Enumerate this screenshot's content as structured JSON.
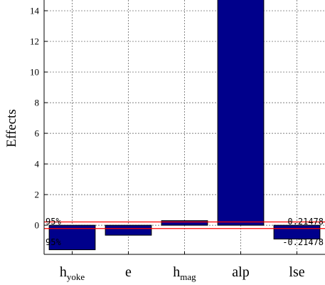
{
  "chart_data": {
    "type": "bar",
    "categories": [
      {
        "base": "h",
        "sub": "yoke"
      },
      {
        "base": "e",
        "sub": ""
      },
      {
        "base": "h",
        "sub": "mag"
      },
      {
        "base": "alp",
        "sub": ""
      },
      {
        "base": "lse",
        "sub": ""
      }
    ],
    "values": [
      -1.6,
      -0.65,
      0.3,
      14.8,
      -0.9
    ],
    "ylabel": "Effects",
    "ylim": [
      -1.9,
      14.7
    ],
    "yticks": [
      0,
      2,
      4,
      6,
      8,
      10,
      12,
      14
    ],
    "grid": true,
    "reference_lines": [
      0.21478,
      -0.21478
    ],
    "annotations": {
      "top_left": "95%",
      "bottom_left": "95%",
      "top_right": "0.21478",
      "bottom_right": "-0.21478"
    },
    "colors": {
      "bar_fill": "#00008b",
      "bar_stroke": "#000000",
      "reference_line": "#ff0000",
      "grid": "#555555"
    }
  }
}
